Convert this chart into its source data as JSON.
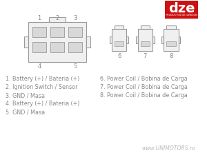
{
  "bg_color": "#ffffff",
  "connector_fill": "#d8d8d8",
  "connector_edge": "#999999",
  "connector_body_fill": "#f0f0f0",
  "text_color": "#888888",
  "dze_red": "#cc1111",
  "labels_left": [
    "1. Battery (+) / Bateria (+)",
    "2. Ignition Switch / Sensor",
    "3. GND / Masa",
    "4. Battery (+) / Bateria (+)",
    "5. GND / Masa"
  ],
  "labels_right": [
    "6. Power Coil / Bobina de Carga",
    "7. Power Coil / Bobina de Carga",
    "8. Power Coil / Bobina de Carga"
  ],
  "pin_numbers_top": [
    "1",
    "2",
    "3"
  ],
  "pin_numbers_bot": [
    "4",
    "5"
  ],
  "pin_numbers_right": [
    "6",
    "7",
    "8"
  ],
  "watermark": "www.UNIMOTORS.ro",
  "dze_text": "dze",
  "dze_sub": "PRODUCTOS DE IGNICION"
}
